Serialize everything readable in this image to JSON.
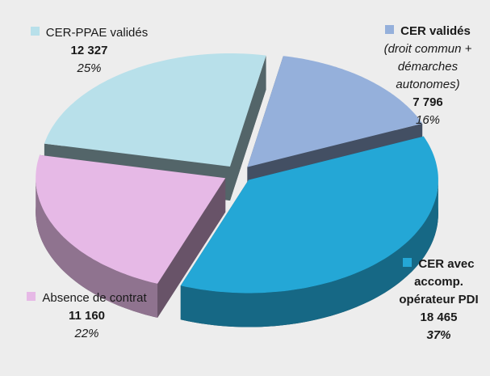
{
  "chart_data": {
    "type": "pie3d",
    "categories": [
      "CER validés",
      "CER avec accomp. opérateur PDI",
      "Absence de contrat",
      "CER-PPAE validés"
    ],
    "category_notes": [
      "(droit commun + démarches autonomes)",
      null,
      null,
      null
    ],
    "values": [
      7796,
      18465,
      11160,
      12327
    ],
    "value_labels": [
      "7 796",
      "18 465",
      "11 160",
      "12 327"
    ],
    "percents": [
      16,
      37,
      22,
      25
    ],
    "percent_labels": [
      "16%",
      "37%",
      "22%",
      "25%"
    ],
    "colors": [
      "#95b0db",
      "#24a7d6",
      "#e6b9e6",
      "#b8e0ea"
    ]
  }
}
